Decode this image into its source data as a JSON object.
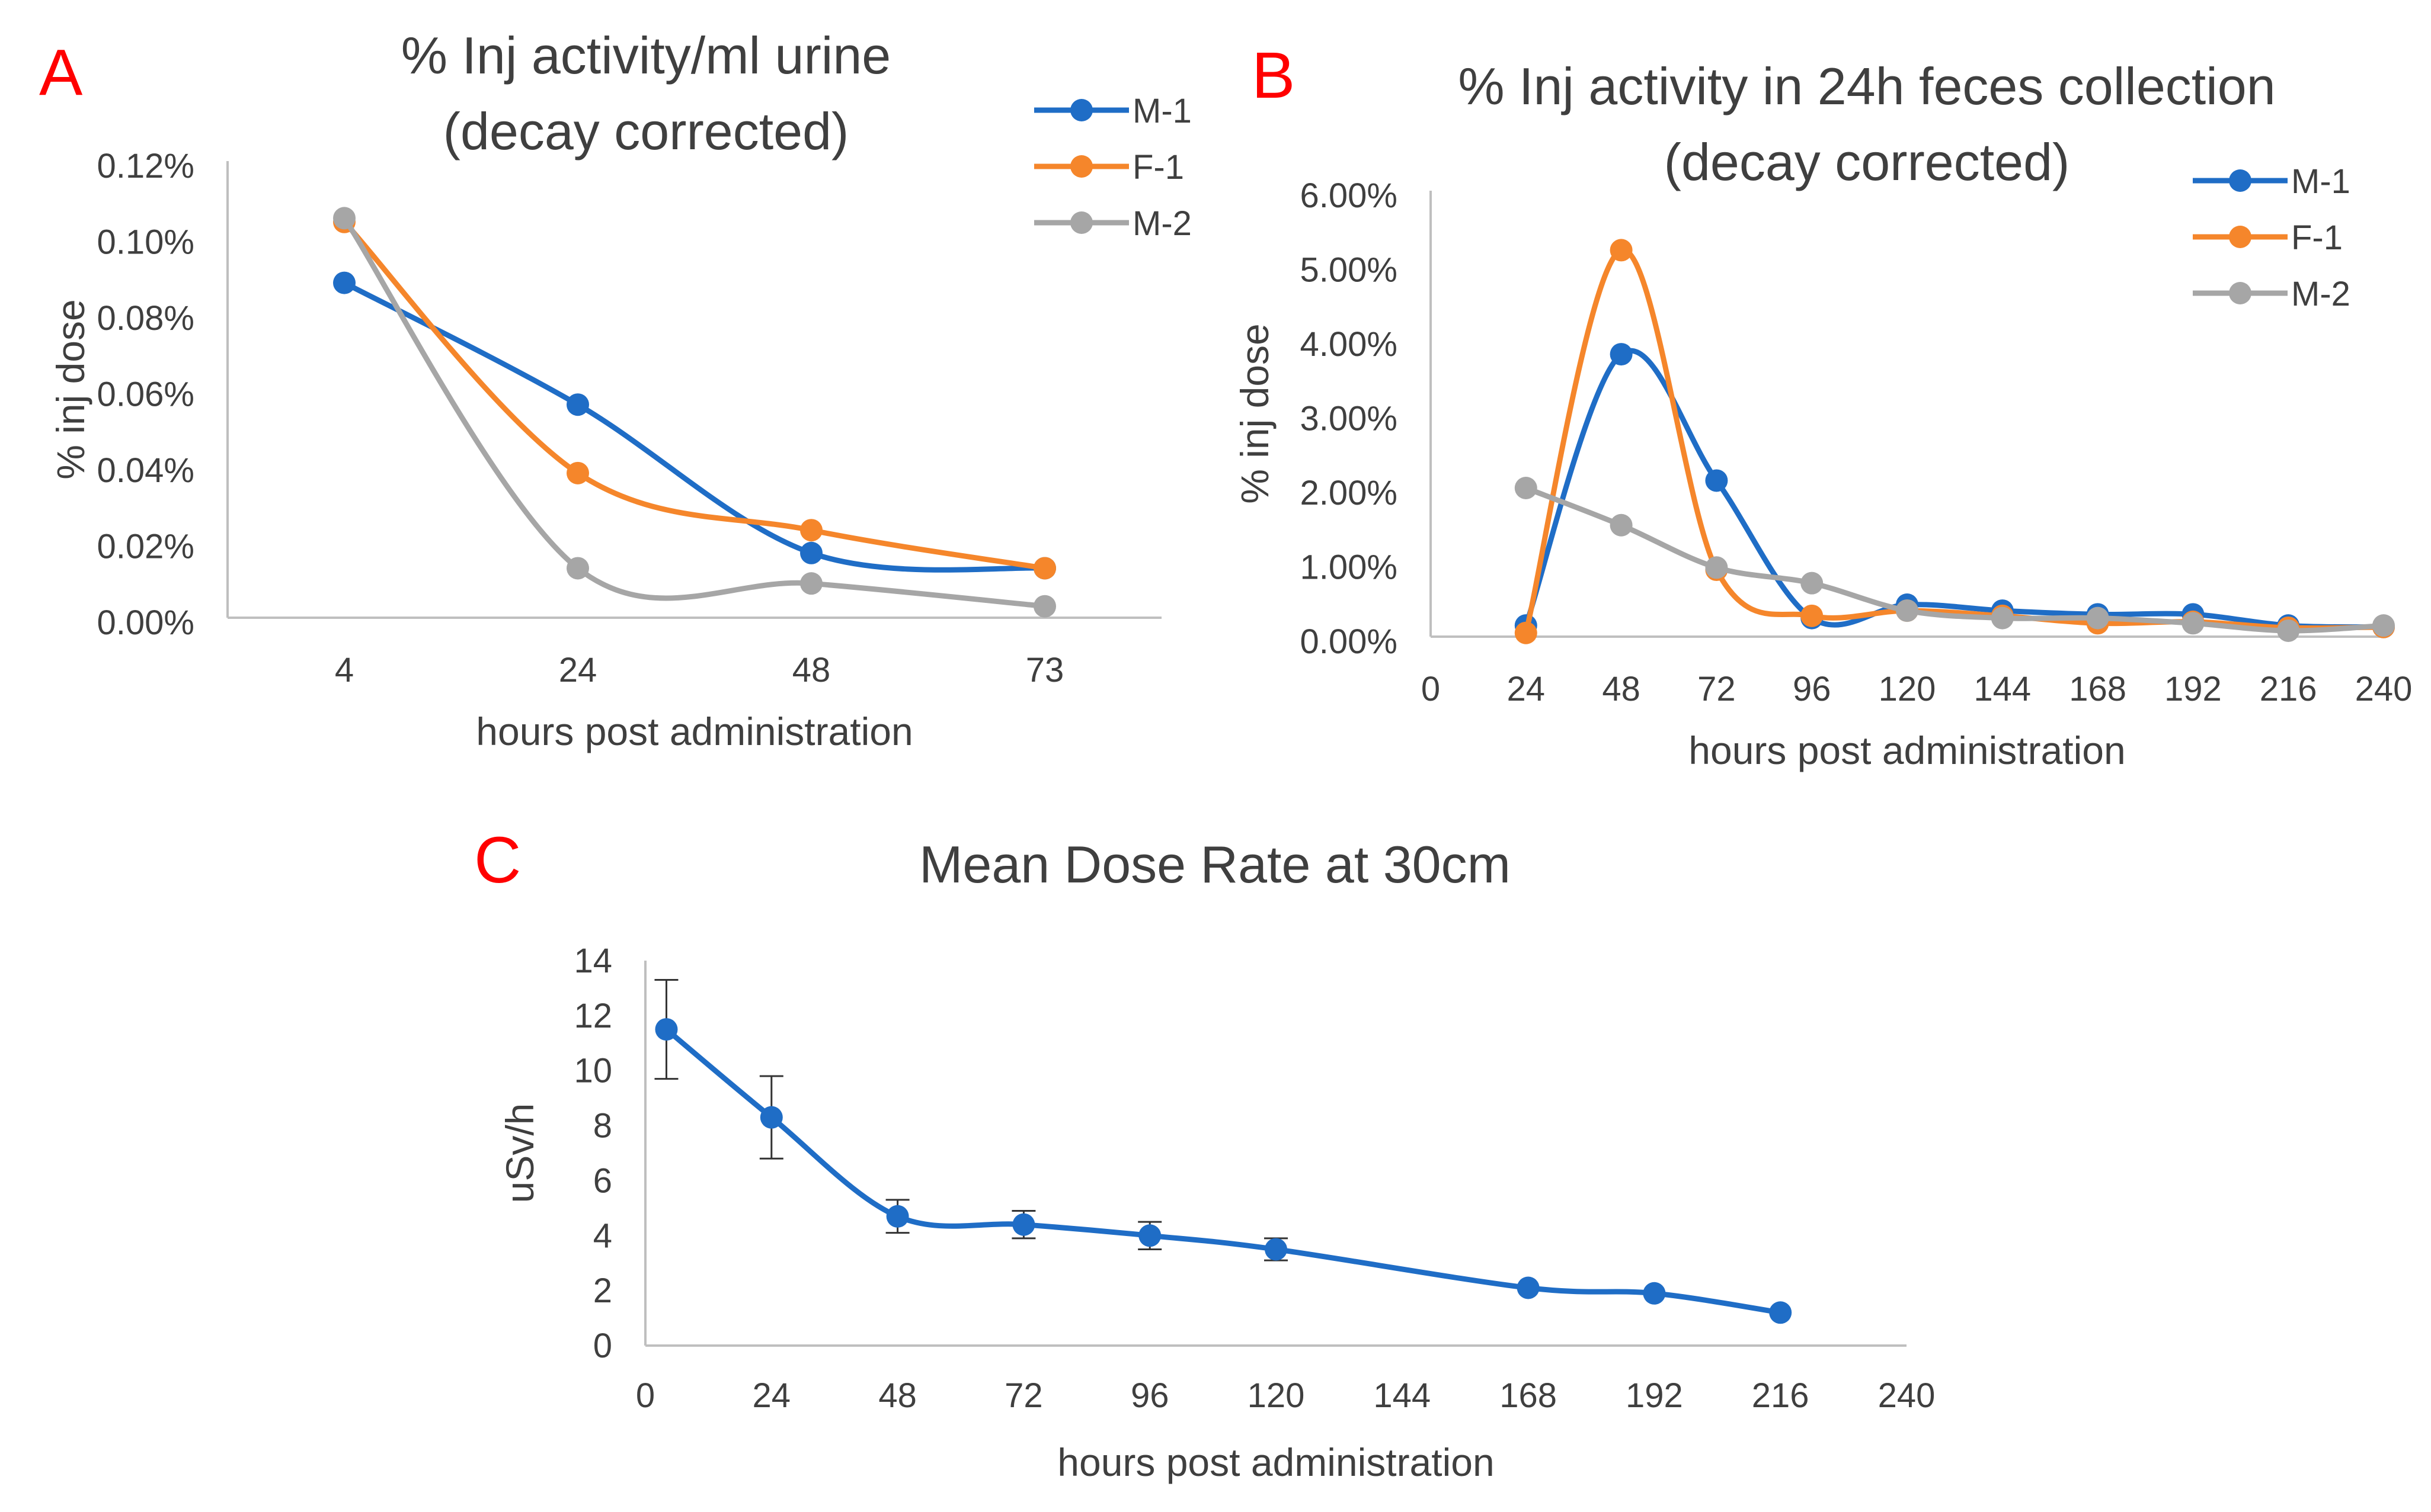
{
  "colors": {
    "m1": "#1f6dc6",
    "f1": "#f5862b",
    "m2": "#a6a6a6",
    "axis": "#bfbfbf",
    "text": "#3f3f3f",
    "panel_letter": "#ff0000"
  },
  "chart_data": [
    {
      "id": "A",
      "panel_letter": "A",
      "type": "line",
      "smooth": true,
      "title": [
        "% Inj activity/ml urine",
        "(decay corrected)"
      ],
      "xlabel": "hours post administration",
      "ylabel": "% inj dose",
      "x_type": "category",
      "categories": [
        "4",
        "24",
        "48",
        "73"
      ],
      "ylim": [
        0,
        0.12
      ],
      "yticks": [
        0,
        0.02,
        0.04,
        0.06,
        0.08,
        0.1,
        0.12
      ],
      "ytick_labels": [
        "0.00%",
        "0.02%",
        "0.04%",
        "0.06%",
        "0.08%",
        "0.10%",
        "0.12%"
      ],
      "legend": {
        "placement": "top-right-outside"
      },
      "series": [
        {
          "name": "M-1",
          "color": "#1f6dc6",
          "values": [
            0.088,
            0.056,
            0.017,
            0.013
          ]
        },
        {
          "name": "F-1",
          "color": "#f5862b",
          "values": [
            0.104,
            0.038,
            0.023,
            0.013
          ]
        },
        {
          "name": "M-2",
          "color": "#a6a6a6",
          "values": [
            0.105,
            0.013,
            0.009,
            0.003
          ]
        }
      ]
    },
    {
      "id": "B",
      "panel_letter": "B",
      "type": "line",
      "smooth": true,
      "title": [
        "% Inj activity in 24h feces collection",
        "(decay corrected)"
      ],
      "xlabel": "hours post administration",
      "ylabel": "% inj dose",
      "x_type": "numeric",
      "xlim": [
        0,
        240
      ],
      "xticks": [
        0,
        24,
        48,
        72,
        96,
        120,
        144,
        168,
        192,
        216,
        240
      ],
      "ylim": [
        0,
        0.06
      ],
      "yticks": [
        0,
        0.01,
        0.02,
        0.03,
        0.04,
        0.05,
        0.06
      ],
      "ytick_labels": [
        "0.00%",
        "1.00%",
        "2.00%",
        "3.00%",
        "4.00%",
        "5.00%",
        "6.00%"
      ],
      "legend": {
        "placement": "top-right"
      },
      "series": [
        {
          "name": "M-1",
          "color": "#1f6dc6",
          "x": [
            24,
            48,
            72,
            96,
            120,
            144,
            168,
            192,
            216,
            240
          ],
          "values": [
            0.0015,
            0.038,
            0.021,
            0.0025,
            0.0043,
            0.0035,
            0.003,
            0.003,
            0.0015,
            0.0013
          ]
        },
        {
          "name": "F-1",
          "color": "#f5862b",
          "x": [
            24,
            48,
            72,
            96,
            120,
            144,
            168,
            192,
            216,
            240
          ],
          "values": [
            0.0005,
            0.052,
            0.009,
            0.0028,
            0.0035,
            0.0028,
            0.0018,
            0.002,
            0.0012,
            0.0013
          ]
        },
        {
          "name": "M-2",
          "color": "#a6a6a6",
          "x": [
            24,
            48,
            72,
            96,
            120,
            144,
            168,
            192,
            216,
            240
          ],
          "values": [
            0.02,
            0.015,
            0.0093,
            0.0072,
            0.0035,
            0.0025,
            0.0025,
            0.0018,
            0.0008,
            0.0015
          ]
        }
      ]
    },
    {
      "id": "C",
      "panel_letter": "C",
      "type": "line",
      "smooth": true,
      "title": [
        "Mean Dose Rate at 30cm"
      ],
      "xlabel": "hours post administration",
      "ylabel": "uSv/h",
      "x_type": "numeric",
      "xlim": [
        0,
        240
      ],
      "xticks": [
        0,
        24,
        48,
        72,
        96,
        120,
        144,
        168,
        192,
        216,
        240
      ],
      "ylim": [
        0,
        14
      ],
      "yticks": [
        0,
        2,
        4,
        6,
        8,
        10,
        12,
        14
      ],
      "ytick_labels": [
        "0",
        "2",
        "4",
        "6",
        "8",
        "10",
        "12",
        "14"
      ],
      "series": [
        {
          "name": "Mean dose rate",
          "color": "#1f6dc6",
          "x": [
            4,
            24,
            48,
            72,
            96,
            120,
            168,
            192,
            216
          ],
          "values": [
            11.5,
            8.3,
            4.7,
            4.4,
            4.0,
            3.5,
            2.1,
            1.9,
            1.2
          ],
          "error": [
            1.8,
            1.5,
            0.6,
            0.5,
            0.5,
            0.4,
            0,
            0,
            0
          ]
        }
      ]
    }
  ]
}
